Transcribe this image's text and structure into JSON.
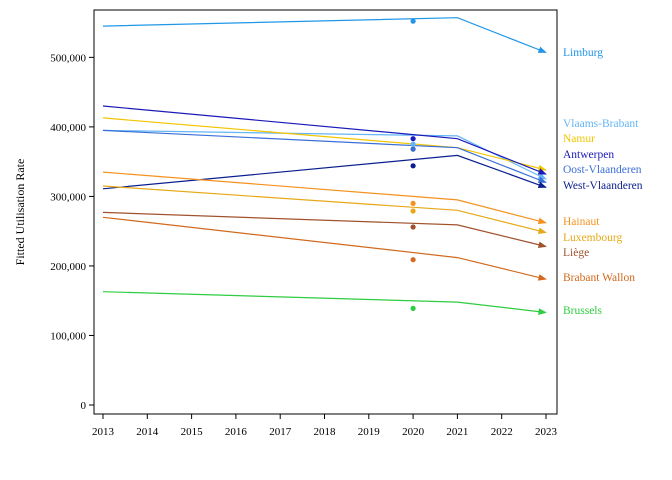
{
  "chart_data": {
    "type": "line",
    "title": "",
    "xlabel": "",
    "ylabel": "Fitted Utilisation Rate",
    "xlim": [
      2013,
      2023
    ],
    "ylim": [
      0,
      570000
    ],
    "x_ticks": [
      "2013",
      "2014",
      "2015",
      "2016",
      "2017",
      "2018",
      "2019",
      "2020",
      "2021",
      "2022",
      "2023"
    ],
    "y_ticks": [
      {
        "value": 0,
        "label": "0"
      },
      {
        "value": 100000,
        "label": "100,000"
      },
      {
        "value": 200000,
        "label": "200,000"
      },
      {
        "value": 300000,
        "label": "300,000"
      },
      {
        "value": 400000,
        "label": "400,000"
      },
      {
        "value": 500000,
        "label": "500,000"
      }
    ],
    "grid": false,
    "legend": "right-of-plot",
    "series": [
      {
        "name": "Limburg",
        "color": "#2196e8",
        "x": [
          2013,
          2021,
          2023
        ],
        "values": [
          545000,
          557000,
          507000
        ],
        "point": {
          "x": 2020,
          "y": 552000
        }
      },
      {
        "name": "Vlaams-Brabant",
        "color": "#64b5f6",
        "x": [
          2013,
          2021,
          2023
        ],
        "values": [
          395000,
          387000,
          325000
        ],
        "point": {
          "x": 2020,
          "y": 375000
        }
      },
      {
        "name": "Namur",
        "color": "#f2c500",
        "x": [
          2013,
          2021,
          2023
        ],
        "values": [
          413000,
          370000,
          338000
        ],
        "point": {
          "x": 2020,
          "y": 368000
        }
      },
      {
        "name": "Antwerpen",
        "color": "#1a1aba",
        "x": [
          2013,
          2021,
          2023
        ],
        "values": [
          430000,
          383000,
          332000
        ],
        "point": {
          "x": 2020,
          "y": 383000
        }
      },
      {
        "name": "Oost-Vlaanderen",
        "color": "#3a6fd8",
        "x": [
          2013,
          2021,
          2023
        ],
        "values": [
          395000,
          370000,
          320000
        ],
        "point": {
          "x": 2020,
          "y": 368000
        }
      },
      {
        "name": "West-Vlaanderen",
        "color": "#0a1f8f",
        "x": [
          2013,
          2021,
          2023
        ],
        "values": [
          311000,
          359000,
          313000
        ],
        "point": {
          "x": 2020,
          "y": 344000
        }
      },
      {
        "name": "Hainaut",
        "color": "#f5921e",
        "x": [
          2013,
          2021,
          2023
        ],
        "values": [
          335000,
          295000,
          262000
        ],
        "point": {
          "x": 2020,
          "y": 290000
        }
      },
      {
        "name": "Luxembourg",
        "color": "#e6a817",
        "x": [
          2013,
          2021,
          2023
        ],
        "values": [
          315000,
          280000,
          248000
        ],
        "point": {
          "x": 2020,
          "y": 279000
        }
      },
      {
        "name": "Liège",
        "color": "#a0522d",
        "x": [
          2013,
          2021,
          2023
        ],
        "values": [
          277000,
          259000,
          228000
        ],
        "point": {
          "x": 2020,
          "y": 256000
        }
      },
      {
        "name": "Brabant Wallon",
        "color": "#d2691e",
        "x": [
          2013,
          2021,
          2023
        ],
        "values": [
          270000,
          212000,
          181000
        ],
        "point": {
          "x": 2020,
          "y": 209000
        }
      },
      {
        "name": "Brussels",
        "color": "#2ecc40",
        "x": [
          2013,
          2021,
          2023
        ],
        "values": [
          163000,
          148000,
          133000
        ],
        "point": {
          "x": 2020,
          "y": 139000
        }
      }
    ]
  }
}
